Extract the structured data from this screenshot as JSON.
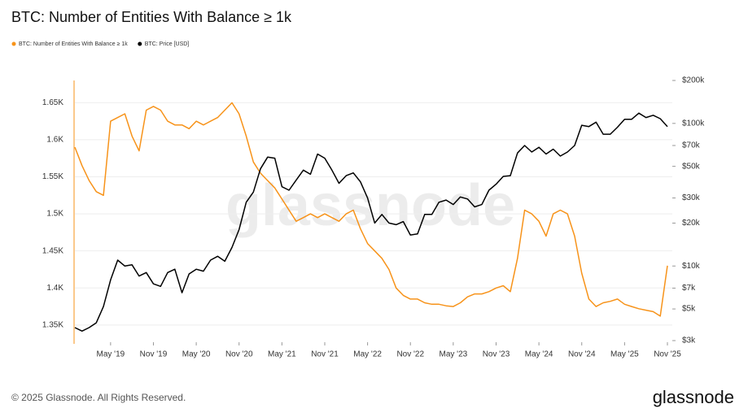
{
  "chart_data": {
    "type": "line",
    "title": "BTC: Number of Entities With Balance ≥ 1k",
    "x": [
      "2018-12",
      "2019-01",
      "2019-02",
      "2019-03",
      "2019-04",
      "2019-05",
      "2019-06",
      "2019-07",
      "2019-08",
      "2019-09",
      "2019-10",
      "2019-11",
      "2019-12",
      "2020-01",
      "2020-02",
      "2020-03",
      "2020-04",
      "2020-05",
      "2020-06",
      "2020-07",
      "2020-08",
      "2020-09",
      "2020-10",
      "2020-11",
      "2020-12",
      "2021-01",
      "2021-02",
      "2021-03",
      "2021-04",
      "2021-05",
      "2021-06",
      "2021-07",
      "2021-08",
      "2021-09",
      "2021-10",
      "2021-11",
      "2021-12",
      "2022-01",
      "2022-02",
      "2022-03",
      "2022-04",
      "2022-05",
      "2022-06",
      "2022-07",
      "2022-08",
      "2022-09",
      "2022-10",
      "2022-11",
      "2022-12",
      "2023-01",
      "2023-02",
      "2023-03",
      "2023-04",
      "2023-05",
      "2023-06",
      "2023-07",
      "2023-08",
      "2023-09",
      "2023-10",
      "2023-11",
      "2023-12",
      "2024-01",
      "2024-02",
      "2024-03",
      "2024-04",
      "2024-05",
      "2024-06",
      "2024-07",
      "2024-08",
      "2024-09",
      "2024-10",
      "2024-11",
      "2024-12",
      "2025-01",
      "2025-02",
      "2025-03",
      "2025-04",
      "2025-05",
      "2025-06",
      "2025-07",
      "2025-08",
      "2025-09",
      "2025-10",
      "2025-11"
    ],
    "series": [
      {
        "name": "BTC: Number of Entities With Balance ≥ 1k",
        "color": "#f7931a",
        "values": [
          1590,
          1565,
          1545,
          1530,
          1525,
          1625,
          1630,
          1635,
          1605,
          1585,
          1640,
          1645,
          1640,
          1625,
          1620,
          1620,
          1615,
          1625,
          1620,
          1625,
          1630,
          1640,
          1650,
          1635,
          1605,
          1570,
          1555,
          1545,
          1535,
          1520,
          1505,
          1490,
          1495,
          1500,
          1495,
          1500,
          1495,
          1490,
          1500,
          1505,
          1480,
          1460,
          1450,
          1440,
          1425,
          1400,
          1390,
          1385,
          1385,
          1380,
          1378,
          1378,
          1376,
          1375,
          1380,
          1388,
          1392,
          1392,
          1395,
          1400,
          1403,
          1395,
          1440,
          1505,
          1500,
          1490,
          1470,
          1500,
          1505,
          1500,
          1470,
          1420,
          1385,
          1375,
          1380,
          1382,
          1385,
          1378,
          1375,
          1372,
          1370,
          1368,
          1362,
          1430
        ]
      },
      {
        "name": "BTC: Price [USD]",
        "color": "#000000",
        "axis": "y2",
        "values": [
          3700,
          3500,
          3700,
          4000,
          5200,
          8000,
          11000,
          10000,
          10200,
          8500,
          9000,
          7500,
          7200,
          9000,
          9500,
          6500,
          8800,
          9500,
          9200,
          11000,
          11700,
          10800,
          13500,
          18000,
          28000,
          33000,
          48000,
          58000,
          57000,
          36000,
          34000,
          40000,
          47000,
          44000,
          61000,
          57000,
          47000,
          38000,
          43000,
          45000,
          39000,
          30000,
          20000,
          23000,
          20000,
          19500,
          20500,
          16500,
          16800,
          23000,
          23000,
          28000,
          29000,
          27000,
          30500,
          29500,
          26000,
          27000,
          34000,
          37500,
          42500,
          43000,
          62000,
          70000,
          63000,
          68000,
          61000,
          66000,
          59000,
          63000,
          70000,
          97000,
          95000,
          102000,
          84000,
          84000,
          94000,
          107000,
          107000,
          118000,
          110000,
          114000,
          108000,
          95000
        ]
      }
    ],
    "xlim": [
      "2018-12",
      "2025-11"
    ],
    "xticks": [
      {
        "value": "2019-05",
        "label": "May '19"
      },
      {
        "value": "2019-11",
        "label": "Nov '19"
      },
      {
        "value": "2020-05",
        "label": "May '20"
      },
      {
        "value": "2020-11",
        "label": "Nov '20"
      },
      {
        "value": "2021-05",
        "label": "May '21"
      },
      {
        "value": "2021-11",
        "label": "Nov '21"
      },
      {
        "value": "2022-05",
        "label": "May '22"
      },
      {
        "value": "2022-11",
        "label": "Nov '22"
      },
      {
        "value": "2023-05",
        "label": "May '23"
      },
      {
        "value": "2023-11",
        "label": "Nov '23"
      },
      {
        "value": "2024-05",
        "label": "May '24"
      },
      {
        "value": "2024-11",
        "label": "Nov '24"
      },
      {
        "value": "2025-05",
        "label": "May '25"
      },
      {
        "value": "2025-11",
        "label": "Nov '25"
      }
    ],
    "ylim": [
      1329,
      1680
    ],
    "yticks": [
      {
        "value": 1350,
        "label": "1.35K"
      },
      {
        "value": 1400,
        "label": "1.4K"
      },
      {
        "value": 1450,
        "label": "1.45K"
      },
      {
        "value": 1500,
        "label": "1.5K"
      },
      {
        "value": 1550,
        "label": "1.55K"
      },
      {
        "value": 1600,
        "label": "1.6K"
      },
      {
        "value": 1650,
        "label": "1.65K"
      }
    ],
    "y2lim": [
      3000,
      200000
    ],
    "y2scale": "log",
    "y2ticks": [
      {
        "value": 3000,
        "label": "$3k"
      },
      {
        "value": 5000,
        "label": "$5k"
      },
      {
        "value": 7000,
        "label": "$7k"
      },
      {
        "value": 10000,
        "label": "$10k"
      },
      {
        "value": 20000,
        "label": "$20k"
      },
      {
        "value": 30000,
        "label": "$30k"
      },
      {
        "value": 50000,
        "label": "$50k"
      },
      {
        "value": 70000,
        "label": "$70k"
      },
      {
        "value": 100000,
        "label": "$100k"
      },
      {
        "value": 200000,
        "label": "$200k"
      }
    ],
    "grid": true,
    "legend": "top-left"
  },
  "watermark": "glassnode",
  "copyright": "© 2025 Glassnode. All Rights Reserved.",
  "logo": "glassnode"
}
